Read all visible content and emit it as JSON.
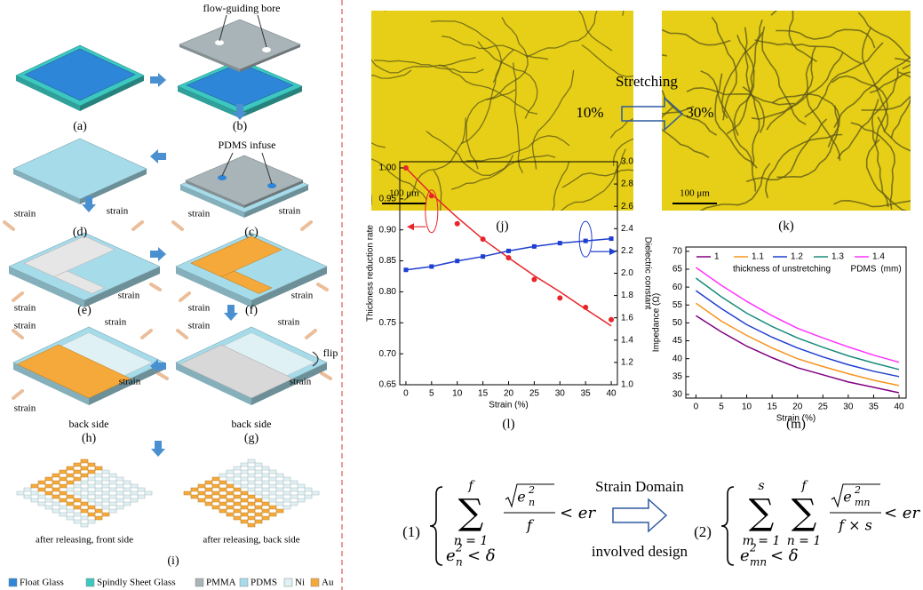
{
  "diagram": {
    "panels": [
      "(a)",
      "(b)",
      "(c)",
      "(d)",
      "(e)",
      "(f)",
      "(g)",
      "(h)",
      "(i)"
    ],
    "annotations": {
      "flow_guiding_bore": "flow-guiding bore",
      "pdms_infuse": "PDMS infuse",
      "flip": "flip"
    },
    "strain_labels": [
      "strain",
      "strain",
      "strain",
      "strain",
      "strain",
      "strain",
      "strain",
      "strain",
      "strain",
      "strain",
      "strain",
      "strain",
      "strain",
      "strain",
      "strain"
    ],
    "side_labels": [
      "back side",
      "back side"
    ],
    "release_labels": [
      "after releasing,  front side",
      "after releasing,  back side"
    ],
    "legend": [
      {
        "name": "Float Glass",
        "color": "#2e86d8"
      },
      {
        "name": "Spindly Sheet Glass",
        "color": "#3cc8c0"
      },
      {
        "name": "PMMA",
        "color": "#a8b4b8"
      },
      {
        "name": "PDMS",
        "color": "#a6dcea"
      },
      {
        "name": "Ni",
        "color": "#dff1f4"
      },
      {
        "name": "Au",
        "color": "#f5a93a"
      }
    ]
  },
  "micrographs": {
    "stretching": "Stretching",
    "start": "10%",
    "end": "30%",
    "scale_bars": [
      "100 μm",
      "100 μm"
    ],
    "panels": [
      "(j)",
      "(k)"
    ]
  },
  "chart_data": [
    {
      "type": "line",
      "caption": "(l)",
      "x_label": "Strain (%)",
      "y_label": "Thickness reduction rate",
      "y2_label": "Dielectric constant",
      "x": [
        0,
        5,
        10,
        15,
        20,
        25,
        30,
        35,
        40
      ],
      "xlim": [
        -1.2,
        41.2
      ],
      "xticks": [
        0,
        5,
        10,
        15,
        20,
        25,
        30,
        35,
        40
      ],
      "ylim": [
        0.65,
        1.01
      ],
      "yticks": [
        0.65,
        {
          "value": 0.7,
          "label": "0.70"
        },
        0.75,
        {
          "value": 0.8,
          "label": "0.80"
        },
        0.85,
        {
          "value": 0.9,
          "label": "0.90"
        },
        0.95,
        {
          "value": 1,
          "label": "1.00"
        }
      ],
      "y2lim": [
        1,
        3
      ],
      "y2ticks": [
        {
          "value": 1,
          "label": "1.0"
        },
        1.2,
        1.4,
        1.6,
        1.8,
        {
          "value": 2,
          "label": "2.0"
        },
        2.2,
        2.4,
        2.6,
        2.8,
        {
          "value": 3,
          "label": "3.0"
        }
      ],
      "series": [
        {
          "color": "#e8262a",
          "mode": "markers",
          "marker": "circle",
          "values": [
            1.0,
            0.955,
            0.91,
            0.885,
            0.855,
            0.82,
            0.79,
            0.775,
            0.755
          ]
        },
        {
          "color": "#e8262a",
          "mode": "lines",
          "values": [
            1.0,
            0.958,
            0.92,
            0.885,
            0.855,
            0.826,
            0.8,
            0.772,
            0.745
          ]
        },
        {
          "color": "#1f3fd0",
          "mode": "lines+markers",
          "marker": "square",
          "axis": "y2",
          "values": [
            2.03,
            2.06,
            2.11,
            2.15,
            2.2,
            2.24,
            2.27,
            2.29,
            2.31
          ]
        }
      ]
    },
    {
      "type": "line",
      "caption": "(m)",
      "x_label": "Strain (%)",
      "y_label": "Impedance (Ω)",
      "annotations": [
        "thickness of unstretching",
        "PDMS",
        "(mm)"
      ],
      "x": [
        0,
        5,
        10,
        15,
        20,
        25,
        30,
        35,
        40
      ],
      "xlim": [
        -2,
        41.4
      ],
      "xticks": [
        0,
        5,
        10,
        15,
        20,
        25,
        30,
        35,
        40
      ],
      "ylim": [
        29,
        71.2
      ],
      "yticks": [
        30,
        35,
        40,
        45,
        50,
        55,
        60,
        65,
        70
      ],
      "series": [
        {
          "name": "1",
          "color": "#800080",
          "mode": "lines",
          "values": [
            52,
            47.5,
            43.5,
            40.3,
            37.5,
            35.5,
            33.5,
            32,
            30.5
          ]
        },
        {
          "name": "1.1",
          "color": "#f7941d",
          "mode": "lines",
          "values": [
            55.5,
            50.5,
            46.5,
            43,
            40,
            37.8,
            35.8,
            34,
            32.5
          ]
        },
        {
          "name": "1.2",
          "color": "#1f3fd0",
          "mode": "lines",
          "values": [
            59,
            54,
            49.5,
            46,
            43,
            40.5,
            38.3,
            36.5,
            35
          ]
        },
        {
          "name": "1.3",
          "color": "#1a8a7a",
          "mode": "lines",
          "values": [
            62.5,
            57.3,
            52.7,
            49,
            45.8,
            43.2,
            40.8,
            38.8,
            37
          ]
        },
        {
          "name": "1.4",
          "color": "#ff33ff",
          "mode": "lines",
          "values": [
            65.5,
            60.5,
            56,
            52,
            48.5,
            45.8,
            43.3,
            41,
            39
          ]
        }
      ]
    }
  ],
  "equations": {
    "arrow_top": "Strain Domain",
    "arrow_bottom": "involved design",
    "items": [
      {
        "number": "(1)",
        "operator": "∑",
        "sums": [
          {
            "top": "f",
            "bottom": "n = 1"
          }
        ],
        "numerator": {
          "base": "e",
          "sub": "n",
          "sup": "2"
        },
        "denominator": "f",
        "relation": "< er",
        "constraint": {
          "base": "e",
          "sub": "n",
          "sup": "2",
          "relation": "< δ"
        }
      },
      {
        "number": "(2)",
        "operator": "∑",
        "sums": [
          {
            "top": "s",
            "bottom": "m = 1"
          },
          {
            "top": "f",
            "bottom": "n = 1"
          }
        ],
        "numerator": {
          "base": "e",
          "sub": "mn",
          "sup": "2"
        },
        "denominator": "f × s",
        "relation": "< er",
        "constraint": {
          "base": "e",
          "sub": "mn",
          "sup": "2",
          "relation": "< δ"
        }
      }
    ]
  }
}
